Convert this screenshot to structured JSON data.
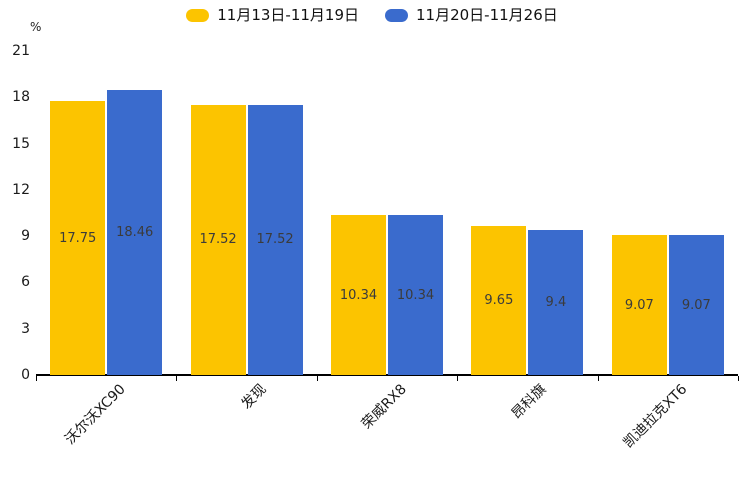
{
  "chart_data": {
    "type": "bar",
    "title": "",
    "unit_label": "%",
    "categories": [
      "沃尔沃XC90",
      "发现",
      "荣威RX8",
      "昂科旗",
      "凯迪拉克XT6"
    ],
    "series": [
      {
        "name": "11月13日-11月19日",
        "color": "#FCC400",
        "values": [
          17.75,
          17.52,
          10.34,
          9.65,
          9.07
        ]
      },
      {
        "name": "11月20日-11月26日",
        "color": "#3A6BCD",
        "values": [
          18.46,
          17.52,
          10.34,
          9.4,
          9.07
        ]
      }
    ],
    "value_labels": [
      [
        "17.75",
        "17.52",
        "10.34",
        "9.65",
        "9.07"
      ],
      [
        "18.46",
        "17.52",
        "10.34",
        "9.4",
        "9.07"
      ]
    ],
    "ylim": [
      0,
      21
    ],
    "yticks": [
      "0",
      "3",
      "6",
      "9",
      "12",
      "15",
      "18",
      "21"
    ],
    "grid": false,
    "legend_position": "top",
    "axis_color": "#000000"
  }
}
